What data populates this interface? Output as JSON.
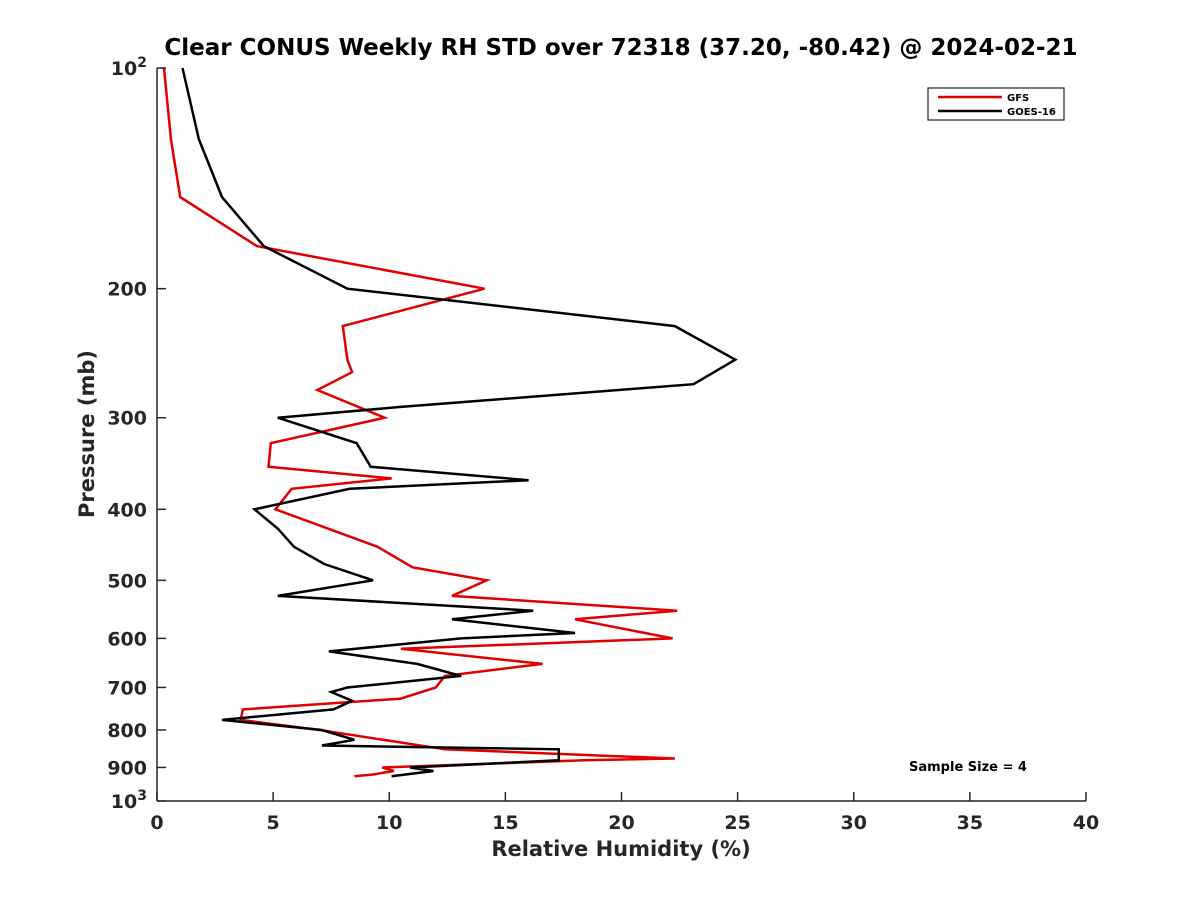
{
  "chart_data": {
    "type": "line",
    "title": "Clear CONUS Weekly RH STD over 72318 (37.20, -80.42) @ 2024-02-21",
    "xlabel": "Relative Humidity (%)",
    "ylabel": "Pressure (mb)",
    "xlim": [
      0,
      40
    ],
    "ylim": [
      100,
      1000
    ],
    "yscale": "log",
    "y_reversed": true,
    "x_ticks": [
      "0",
      "5",
      "10",
      "15",
      "20",
      "25",
      "30",
      "35",
      "40"
    ],
    "y_ticks": [
      {
        "value": 100,
        "label": "10",
        "sup": "2"
      },
      {
        "value": 200,
        "label": "200"
      },
      {
        "value": 300,
        "label": "300"
      },
      {
        "value": 400,
        "label": "400"
      },
      {
        "value": 500,
        "label": "500"
      },
      {
        "value": 600,
        "label": "600"
      },
      {
        "value": 700,
        "label": "700"
      },
      {
        "value": 800,
        "label": "800"
      },
      {
        "value": 900,
        "label": "900"
      },
      {
        "value": 1000,
        "label": "10",
        "sup": "3"
      }
    ],
    "grid": false,
    "legend_position": "top-right",
    "annotation": "Sample Size = 4",
    "series": [
      {
        "name": "GFS",
        "color": "#e00000",
        "points": [
          [
            0.3,
            100
          ],
          [
            0.6,
            125
          ],
          [
            1.0,
            150
          ],
          [
            4.3,
            175
          ],
          [
            14.1,
            200
          ],
          [
            8.0,
            225
          ],
          [
            8.2,
            250
          ],
          [
            8.4,
            260
          ],
          [
            6.9,
            275
          ],
          [
            9.8,
            300
          ],
          [
            4.9,
            325
          ],
          [
            4.8,
            350
          ],
          [
            10.1,
            363
          ],
          [
            5.8,
            375
          ],
          [
            5.1,
            400
          ],
          [
            9.5,
            450
          ],
          [
            11.0,
            480
          ],
          [
            14.2,
            500
          ],
          [
            12.7,
            525
          ],
          [
            22.4,
            550
          ],
          [
            18.0,
            565
          ],
          [
            22.2,
            600
          ],
          [
            10.5,
            620
          ],
          [
            16.6,
            650
          ],
          [
            12.4,
            675
          ],
          [
            12.0,
            700
          ],
          [
            10.5,
            725
          ],
          [
            3.7,
            750
          ],
          [
            3.6,
            775
          ],
          [
            7.0,
            800
          ],
          [
            12.4,
            850
          ],
          [
            22.3,
            875
          ],
          [
            18.4,
            880
          ],
          [
            9.7,
            900
          ],
          [
            10.2,
            910
          ],
          [
            9.3,
            920
          ],
          [
            8.5,
            925
          ]
        ]
      },
      {
        "name": "GOES-16",
        "color": "#000000",
        "points": [
          [
            1.1,
            100
          ],
          [
            1.8,
            125
          ],
          [
            2.8,
            150
          ],
          [
            4.6,
            175
          ],
          [
            8.2,
            200
          ],
          [
            22.3,
            225
          ],
          [
            24.9,
            250
          ],
          [
            23.1,
            270
          ],
          [
            10.5,
            290
          ],
          [
            5.2,
            300
          ],
          [
            8.6,
            325
          ],
          [
            9.2,
            350
          ],
          [
            16.0,
            365
          ],
          [
            8.3,
            375
          ],
          [
            4.2,
            400
          ],
          [
            5.2,
            425
          ],
          [
            5.9,
            450
          ],
          [
            7.2,
            475
          ],
          [
            9.3,
            500
          ],
          [
            5.2,
            525
          ],
          [
            16.2,
            550
          ],
          [
            12.7,
            565
          ],
          [
            18.0,
            590
          ],
          [
            13.1,
            600
          ],
          [
            7.4,
            625
          ],
          [
            11.2,
            650
          ],
          [
            13.1,
            675
          ],
          [
            8.2,
            700
          ],
          [
            7.5,
            710
          ],
          [
            8.4,
            730
          ],
          [
            7.6,
            750
          ],
          [
            2.8,
            775
          ],
          [
            7.1,
            800
          ],
          [
            8.5,
            825
          ],
          [
            7.1,
            840
          ],
          [
            17.3,
            850
          ],
          [
            17.3,
            880
          ],
          [
            10.9,
            900
          ],
          [
            11.9,
            910
          ],
          [
            10.1,
            925
          ]
        ]
      }
    ]
  }
}
